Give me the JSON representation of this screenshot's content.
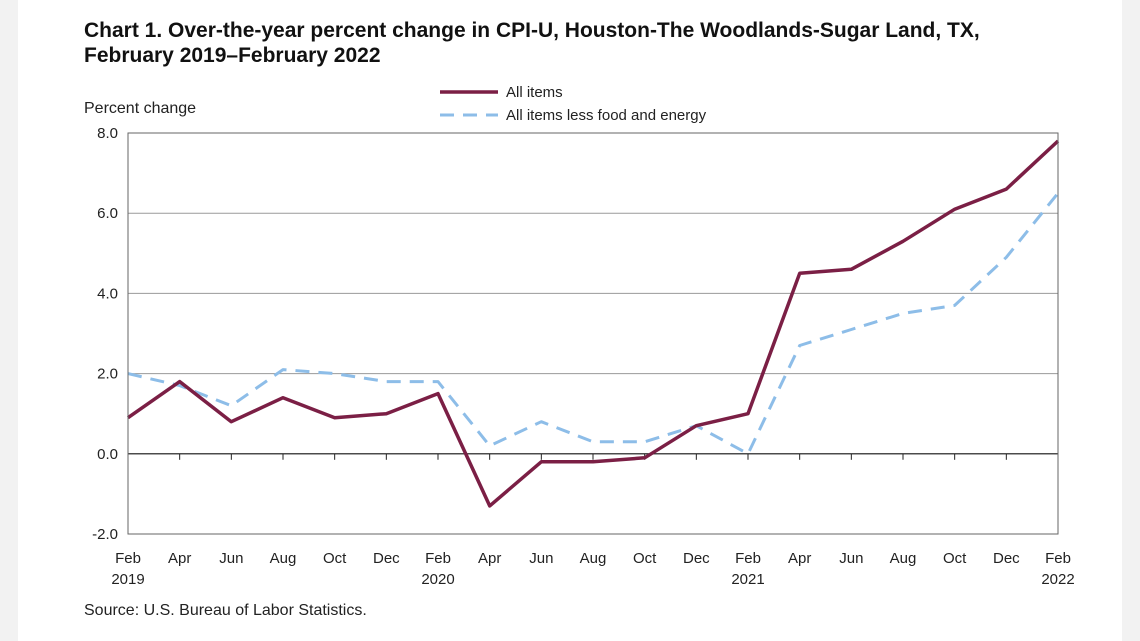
{
  "title_line1": "Chart 1. Over-the-year percent change in CPI-U, Houston-The  Woodlands-Sugar Land, TX,",
  "title_line2": "February 2019–February 2022",
  "source": "Source: U.S. Bureau of Labor Statistics.",
  "chart_data": {
    "type": "line",
    "title": "Chart 1. Over-the-year percent change in CPI-U, Houston-The  Woodlands-Sugar Land, TX, February 2019–February 2022",
    "ylabel": "Percent change",
    "xlabel": "",
    "ylim": [
      -2.0,
      8.0
    ],
    "yticks": [
      "8.0",
      "6.0",
      "4.0",
      "2.0",
      "0.0",
      "-2.0"
    ],
    "grid": true,
    "legend_position": "top-center",
    "x": [
      "Feb 2019",
      "Apr 2019",
      "Jun 2019",
      "Aug 2019",
      "Oct 2019",
      "Dec 2019",
      "Feb 2020",
      "Apr 2020",
      "Jun 2020",
      "Aug 2020",
      "Oct 2020",
      "Dec 2020",
      "Feb 2021",
      "Apr 2021",
      "Jun 2021",
      "Aug 2021",
      "Oct 2021",
      "Dec 2021",
      "Feb 2022"
    ],
    "xtick_labels": [
      {
        "month": "Feb",
        "year": "2019"
      },
      {
        "month": "Apr",
        "year": ""
      },
      {
        "month": "Jun",
        "year": ""
      },
      {
        "month": "Aug",
        "year": ""
      },
      {
        "month": "Oct",
        "year": ""
      },
      {
        "month": "Dec",
        "year": ""
      },
      {
        "month": "Feb",
        "year": "2020"
      },
      {
        "month": "Apr",
        "year": ""
      },
      {
        "month": "Jun",
        "year": ""
      },
      {
        "month": "Aug",
        "year": ""
      },
      {
        "month": "Oct",
        "year": ""
      },
      {
        "month": "Dec",
        "year": ""
      },
      {
        "month": "Feb",
        "year": "2021"
      },
      {
        "month": "Apr",
        "year": ""
      },
      {
        "month": "Jun",
        "year": ""
      },
      {
        "month": "Aug",
        "year": ""
      },
      {
        "month": "Oct",
        "year": ""
      },
      {
        "month": "Dec",
        "year": ""
      },
      {
        "month": "Feb",
        "year": "2022"
      }
    ],
    "series": [
      {
        "name": "All items",
        "color": "#7b1f45",
        "style": "solid",
        "values": [
          0.9,
          1.8,
          0.8,
          1.4,
          0.9,
          1.0,
          1.5,
          -1.3,
          -0.2,
          -0.2,
          -0.1,
          0.7,
          1.0,
          4.5,
          4.6,
          5.3,
          6.1,
          6.6,
          7.8
        ]
      },
      {
        "name": "All items less food and energy",
        "color": "#8dbde8",
        "style": "dashed",
        "values": [
          2.0,
          1.7,
          1.2,
          2.1,
          2.0,
          1.8,
          1.8,
          0.2,
          0.8,
          0.3,
          0.3,
          0.7,
          0.0,
          2.7,
          3.1,
          3.5,
          3.7,
          4.9,
          6.5
        ]
      }
    ]
  }
}
